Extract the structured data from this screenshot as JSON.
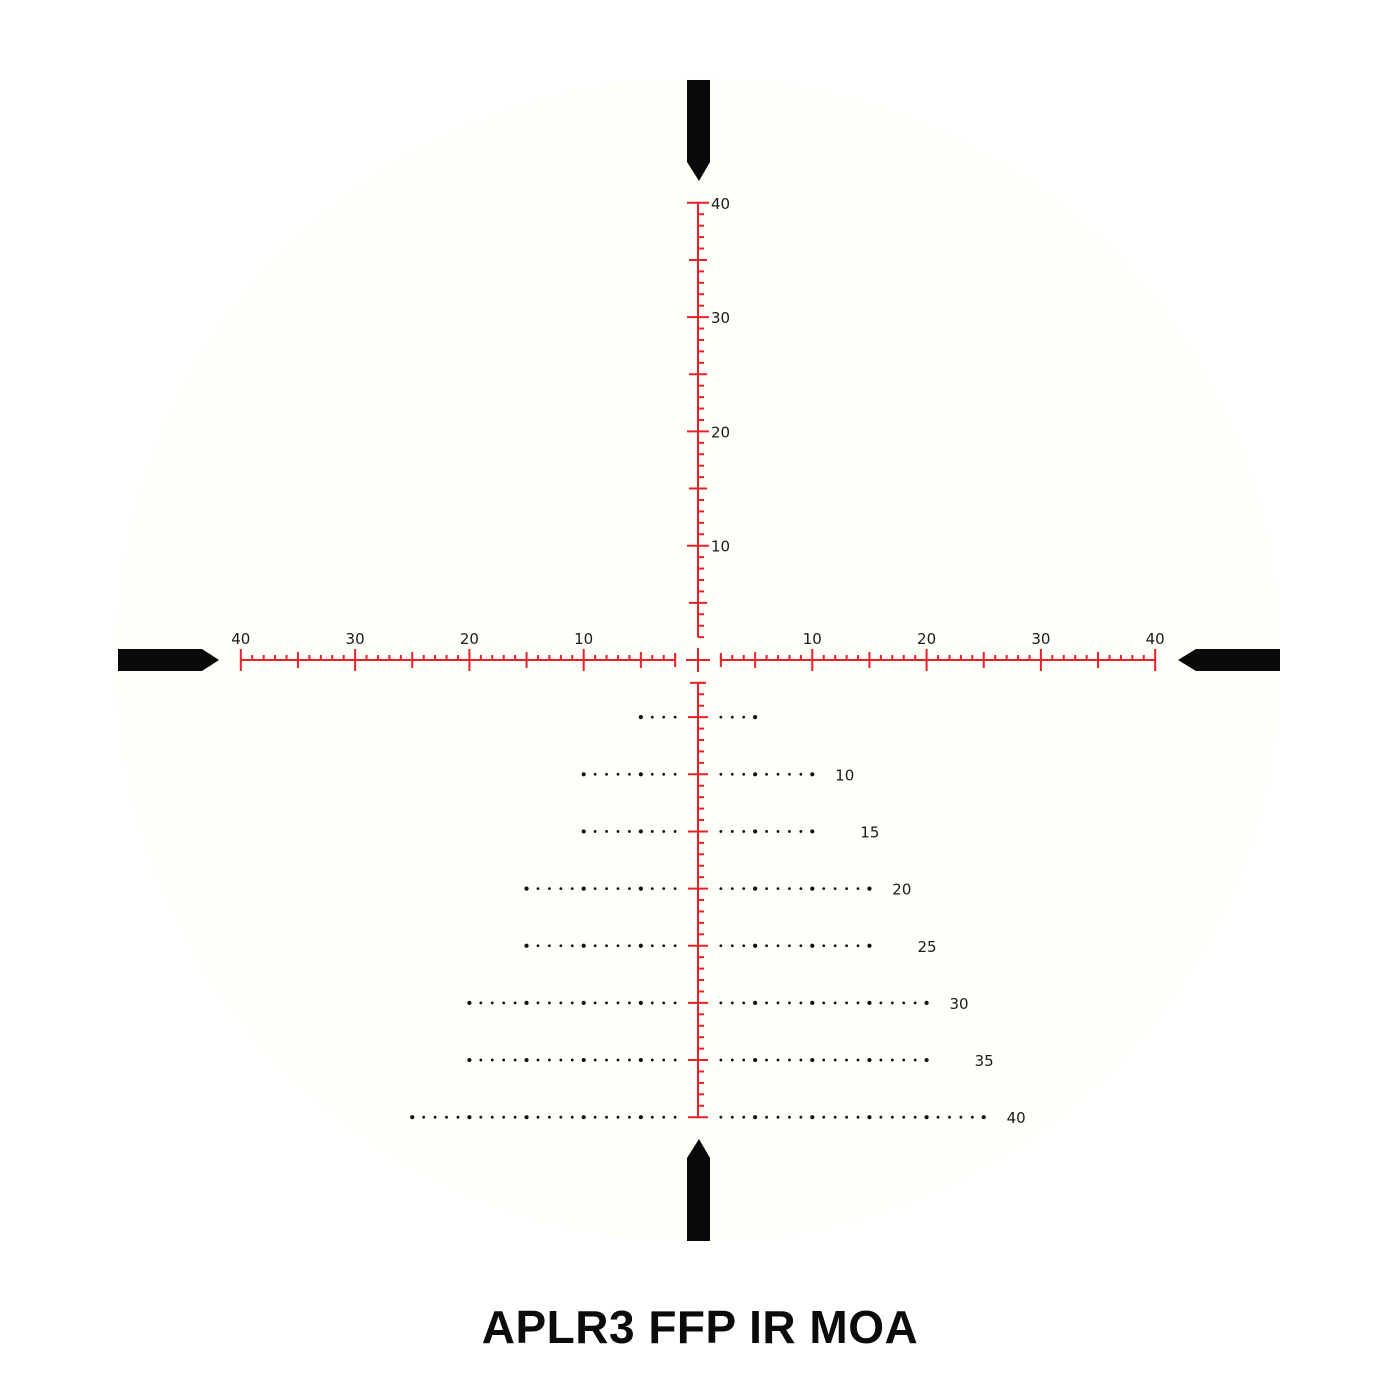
{
  "title": "APLR3 FFP IR MOA",
  "colors": {
    "background": "#ffffff",
    "field": "#fffffa",
    "reticle_red": "#e8202a",
    "post": "#08090b",
    "dots": "#111111",
    "text": "#1a1a1a"
  },
  "icons": [
    "top-post-icon",
    "bottom-post-icon",
    "left-post-icon",
    "right-post-icon",
    "center-cross-icon"
  ],
  "scale": {
    "horizontal_max_moa": 40,
    "vertical_up_max_moa": 40,
    "vertical_down_max_moa": 40,
    "minor_tick_moa": 1,
    "mid_tick_moa": 5,
    "major_tick_moa": 10
  },
  "horizontal_labels": {
    "left": [
      "40",
      "30",
      "20",
      "10"
    ],
    "right": [
      "10",
      "20",
      "30",
      "40"
    ]
  },
  "vertical_labels": [
    "40",
    "30",
    "20",
    "10"
  ],
  "holdover_rows": [
    {
      "moa": 5,
      "extent_moa": 5,
      "label": ""
    },
    {
      "moa": 10,
      "extent_moa": 10,
      "label": "10"
    },
    {
      "moa": 15,
      "extent_moa": 10,
      "label": "15"
    },
    {
      "moa": 20,
      "extent_moa": 15,
      "label": "20"
    },
    {
      "moa": 25,
      "extent_moa": 15,
      "label": "25"
    },
    {
      "moa": 30,
      "extent_moa": 20,
      "label": "30"
    },
    {
      "moa": 35,
      "extent_moa": 20,
      "label": "35"
    },
    {
      "moa": 40,
      "extent_moa": 25,
      "label": "40"
    }
  ]
}
